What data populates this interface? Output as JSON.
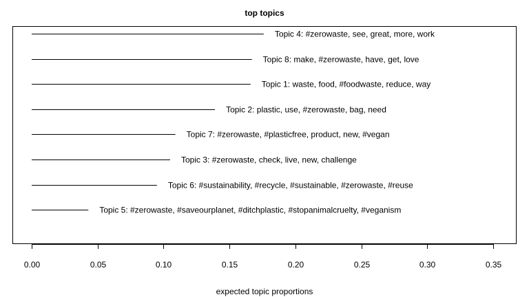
{
  "chart_data": {
    "type": "bar",
    "orientation": "horizontal",
    "title": "top topics",
    "xlabel": "expected topic proportions",
    "ylabel": "",
    "xlim": [
      0,
      0.35
    ],
    "xticks": [
      "0.00",
      "0.05",
      "0.10",
      "0.15",
      "0.20",
      "0.25",
      "0.30",
      "0.35"
    ],
    "grid": false,
    "bars": [
      {
        "label": "Topic 4: #zerowaste, see, great, more, work",
        "value": 0.176
      },
      {
        "label": "Topic 8: make, #zerowaste, have, get, love",
        "value": 0.167
      },
      {
        "label": "Topic 1: waste, food, #foodwaste, reduce, way",
        "value": 0.166
      },
      {
        "label": "Topic 2: plastic, use, #zerowaste, bag, need",
        "value": 0.139
      },
      {
        "label": "Topic 7: #zerowaste, #plasticfree, product, new, #vegan",
        "value": 0.109
      },
      {
        "label": "Topic 3: #zerowaste, check, live, new, challenge",
        "value": 0.105
      },
      {
        "label": "Topic 6: #sustainability, #recycle, #sustainable, #zerowaste, #reuse",
        "value": 0.095
      },
      {
        "label": "Topic 5: #zerowaste, #saveourplanet, #ditchplastic, #stopanimalcruelty, #veganism",
        "value": 0.043
      }
    ]
  }
}
